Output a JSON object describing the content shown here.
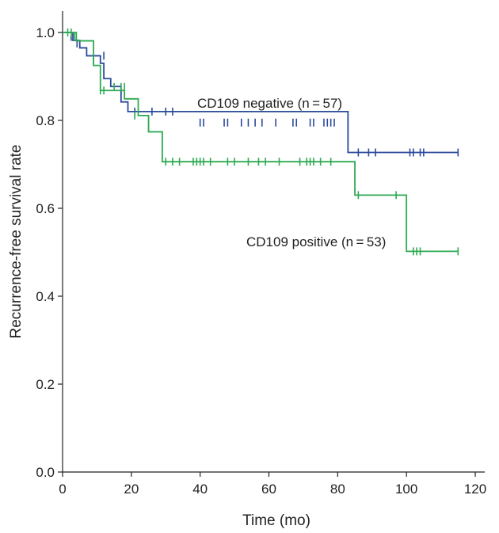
{
  "chart_data": {
    "type": "line",
    "subtype": "kaplan-meier",
    "title": "",
    "xlabel": "Time (mo)",
    "ylabel": "Recurrence-free survival rate",
    "xlim": [
      0,
      120
    ],
    "ylim": [
      0.0,
      1.0
    ],
    "x_ticks": [
      0,
      20,
      40,
      60,
      80,
      100,
      120
    ],
    "y_ticks": [
      0.0,
      0.2,
      0.4,
      0.6,
      0.8,
      1.0
    ],
    "x_tick_labels": [
      "0",
      "20",
      "40",
      "60",
      "80",
      "100",
      "120"
    ],
    "y_tick_labels": [
      "0.0",
      "0.2",
      "0.4",
      "0.6",
      "0.8",
      "1.0"
    ],
    "grid": false,
    "series": [
      {
        "name": "CD109 negative (n=57)",
        "label": "CD109 negative (n = 57)",
        "color": "#2b4a9a",
        "steps": [
          [
            0,
            1.0
          ],
          [
            3,
            0.982
          ],
          [
            5,
            0.965
          ],
          [
            7,
            0.947
          ],
          [
            11,
            0.93
          ],
          [
            12,
            0.895
          ],
          [
            14,
            0.877
          ],
          [
            17,
            0.842
          ],
          [
            19,
            0.82
          ],
          [
            83,
            0.727
          ],
          [
            115,
            0.727
          ]
        ],
        "censored": [
          [
            2.5,
            0.99
          ],
          [
            4.2,
            0.975
          ],
          [
            12,
            0.947
          ],
          [
            21,
            0.82
          ],
          [
            26,
            0.82
          ],
          [
            30,
            0.82
          ],
          [
            32,
            0.82
          ],
          [
            40,
            0.795
          ],
          [
            41,
            0.795
          ],
          [
            47,
            0.795
          ],
          [
            48,
            0.795
          ],
          [
            52,
            0.795
          ],
          [
            54,
            0.795
          ],
          [
            56,
            0.795
          ],
          [
            58,
            0.795
          ],
          [
            62,
            0.795
          ],
          [
            67,
            0.795
          ],
          [
            68,
            0.795
          ],
          [
            72,
            0.795
          ],
          [
            73,
            0.795
          ],
          [
            76,
            0.795
          ],
          [
            77,
            0.795
          ],
          [
            78,
            0.795
          ],
          [
            79,
            0.795
          ],
          [
            86,
            0.727
          ],
          [
            89,
            0.727
          ],
          [
            91,
            0.727
          ],
          [
            101,
            0.727
          ],
          [
            102,
            0.727
          ],
          [
            104,
            0.727
          ],
          [
            105,
            0.727
          ],
          [
            115,
            0.727
          ]
        ],
        "drop_steps": [
          [
            33,
            0.795
          ]
        ]
      },
      {
        "name": "CD109 positive (n=53)",
        "label": "CD109 positive (n = 53)",
        "color": "#2eaa52",
        "steps": [
          [
            0,
            1.0
          ],
          [
            4,
            0.981
          ],
          [
            9,
            0.925
          ],
          [
            11,
            0.868
          ],
          [
            12,
            0.868
          ],
          [
            18,
            0.849
          ],
          [
            22,
            0.811
          ],
          [
            25,
            0.774
          ],
          [
            29,
            0.706
          ],
          [
            85,
            0.63
          ],
          [
            100,
            0.502
          ],
          [
            115,
            0.502
          ]
        ],
        "censored": [
          [
            1.5,
            1.0
          ],
          [
            2.5,
            1.0
          ],
          [
            3.5,
            0.99
          ],
          [
            9,
            0.937
          ],
          [
            11,
            0.868
          ],
          [
            12,
            0.868
          ],
          [
            15,
            0.876
          ],
          [
            17,
            0.876
          ],
          [
            18,
            0.876
          ],
          [
            21,
            0.811
          ],
          [
            30,
            0.706
          ],
          [
            32,
            0.706
          ],
          [
            34,
            0.706
          ],
          [
            38,
            0.706
          ],
          [
            39,
            0.706
          ],
          [
            40,
            0.706
          ],
          [
            41,
            0.706
          ],
          [
            43,
            0.706
          ],
          [
            48,
            0.706
          ],
          [
            50,
            0.706
          ],
          [
            54,
            0.706
          ],
          [
            57,
            0.706
          ],
          [
            59,
            0.706
          ],
          [
            63,
            0.706
          ],
          [
            69,
            0.706
          ],
          [
            71,
            0.706
          ],
          [
            72,
            0.706
          ],
          [
            73,
            0.706
          ],
          [
            75,
            0.706
          ],
          [
            78,
            0.706
          ],
          [
            86,
            0.63
          ],
          [
            97,
            0.63
          ],
          [
            102,
            0.502
          ],
          [
            103,
            0.502
          ],
          [
            104,
            0.502
          ],
          [
            115,
            0.502
          ]
        ],
        "drop_steps": [
          [
            17,
            0.849
          ]
        ]
      }
    ]
  }
}
